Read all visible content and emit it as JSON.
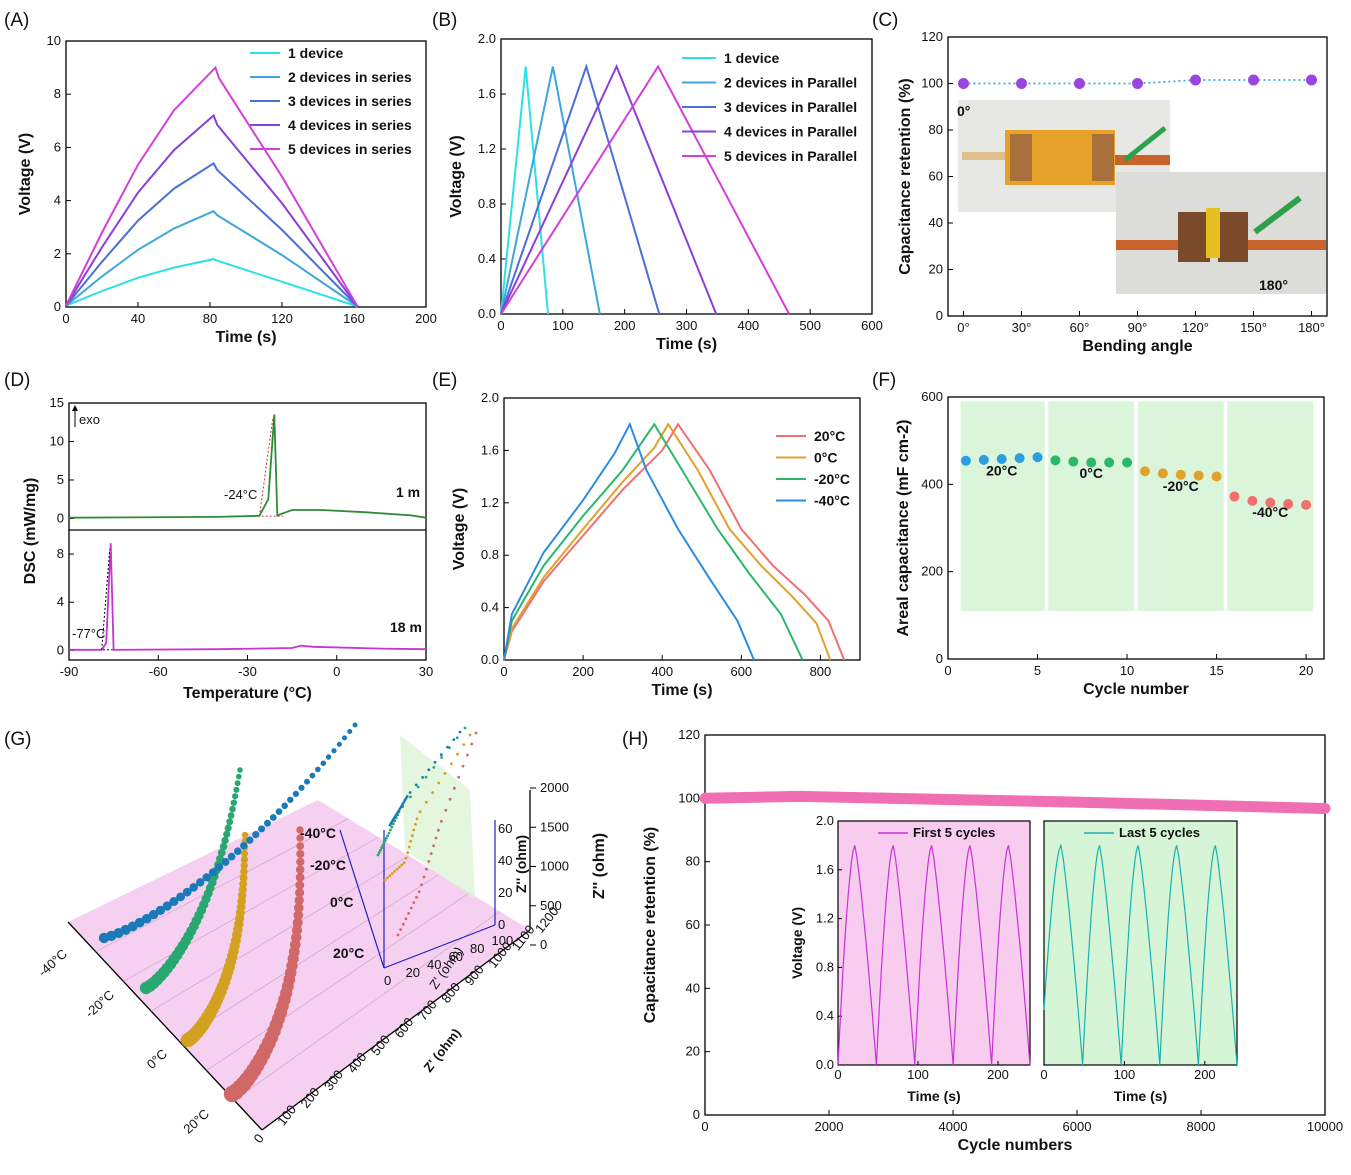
{
  "panel_labels": [
    "(A)",
    "(B)",
    "(C)",
    "(D)",
    "(E)",
    "(F)",
    "(G)",
    "(H)"
  ],
  "chart_data": [
    {
      "id": "A",
      "type": "line",
      "xlabel": "Time (s)",
      "ylabel": "Voltage (V)",
      "xlim": [
        0,
        200
      ],
      "ylim": [
        0,
        10
      ],
      "xticks": [
        0,
        40,
        80,
        120,
        160,
        200
      ],
      "yticks": [
        0,
        2,
        4,
        6,
        8,
        10
      ],
      "legend_position": "top-right",
      "series": [
        {
          "name": "1 device",
          "color": "#2de0e6",
          "points": [
            [
              0,
              0.05
            ],
            [
              20,
              0.6
            ],
            [
              40,
              1.1
            ],
            [
              60,
              1.48
            ],
            [
              82,
              1.8
            ],
            [
              84,
              1.74
            ],
            [
              120,
              0.95
            ],
            [
              162,
              0.02
            ]
          ]
        },
        {
          "name": "2 devices in series",
          "color": "#3ea6dc",
          "points": [
            [
              0,
              0.05
            ],
            [
              20,
              1.15
            ],
            [
              40,
              2.15
            ],
            [
              60,
              2.95
            ],
            [
              82,
              3.6
            ],
            [
              84,
              3.45
            ],
            [
              120,
              1.95
            ],
            [
              162,
              0.02
            ]
          ]
        },
        {
          "name": "3 devices in series",
          "color": "#4a6fd8",
          "points": [
            [
              0,
              0.05
            ],
            [
              20,
              1.7
            ],
            [
              40,
              3.25
            ],
            [
              60,
              4.45
            ],
            [
              82,
              5.4
            ],
            [
              84,
              5.15
            ],
            [
              120,
              2.9
            ],
            [
              162,
              0.02
            ]
          ]
        },
        {
          "name": "4 devices in series",
          "color": "#8a3fd8",
          "points": [
            [
              0,
              0.05
            ],
            [
              20,
              2.25
            ],
            [
              40,
              4.3
            ],
            [
              60,
              5.9
            ],
            [
              82,
              7.2
            ],
            [
              84,
              6.85
            ],
            [
              120,
              3.9
            ],
            [
              162,
              0.02
            ]
          ]
        },
        {
          "name": "5 devices in series",
          "color": "#d43fd8",
          "points": [
            [
              0,
              0.05
            ],
            [
              20,
              2.8
            ],
            [
              40,
              5.35
            ],
            [
              60,
              7.4
            ],
            [
              83,
              9.0
            ],
            [
              85,
              8.6
            ],
            [
              120,
              4.9
            ],
            [
              162,
              0.02
            ]
          ]
        }
      ]
    },
    {
      "id": "B",
      "type": "line",
      "xlabel": "Time (s)",
      "ylabel": "Voltage (V)",
      "xlim": [
        0,
        600
      ],
      "ylim": [
        0,
        2.0
      ],
      "xticks": [
        0,
        100,
        200,
        300,
        400,
        500,
        600
      ],
      "yticks": [
        0.0,
        0.4,
        0.8,
        1.2,
        1.6,
        2.0
      ],
      "legend_position": "top-right",
      "series": [
        {
          "name": "1 device",
          "color": "#2de0e6",
          "points": [
            [
              0,
              0
            ],
            [
              40,
              1.8
            ],
            [
              76,
              0
            ]
          ]
        },
        {
          "name": "2 devices in Parallel",
          "color": "#3ea6dc",
          "points": [
            [
              0,
              0
            ],
            [
              84,
              1.8
            ],
            [
              160,
              0
            ]
          ]
        },
        {
          "name": "3 devices in Parallel",
          "color": "#4a6fd8",
          "points": [
            [
              0,
              0
            ],
            [
              138,
              1.8
            ],
            [
              256,
              0
            ]
          ]
        },
        {
          "name": "4 devices in Parallel",
          "color": "#8a3fd8",
          "points": [
            [
              0,
              0
            ],
            [
              187,
              1.8
            ],
            [
              348,
              0
            ]
          ]
        },
        {
          "name": "5 devices in Parallel",
          "color": "#d43fd8",
          "points": [
            [
              0,
              0
            ],
            [
              254,
              1.8
            ],
            [
              466,
              0
            ]
          ]
        }
      ]
    },
    {
      "id": "C",
      "type": "scatter",
      "xlabel": "Bending angle",
      "ylabel": "Capacitance retention (%)",
      "xlim": [
        -8,
        188
      ],
      "ylim": [
        0,
        120
      ],
      "xticks": [
        0,
        30,
        60,
        90,
        120,
        150,
        180
      ],
      "xticklabels": [
        "0°",
        "30°",
        "60°",
        "90°",
        "120°",
        "150°",
        "180°"
      ],
      "yticks": [
        0,
        20,
        40,
        60,
        80,
        100,
        120
      ],
      "series": [
        {
          "color": "#9a45e0",
          "x": [
            0,
            30,
            60,
            90,
            120,
            150,
            180
          ],
          "y": [
            100,
            100,
            100,
            100,
            101.5,
            101.5,
            101.5
          ]
        }
      ],
      "photo_labels": [
        "0°",
        "180°"
      ]
    },
    {
      "id": "D",
      "type": "line",
      "xlabel": "Temperature (°C)",
      "ylabel": "DSC (mW/mg)",
      "xlim": [
        -90,
        30
      ],
      "xticks": [
        -90,
        -60,
        -30,
        0,
        30
      ],
      "top": {
        "ylim": [
          -1.5,
          15
        ],
        "yticks": [
          0,
          5,
          10,
          15
        ],
        "label": "1 m",
        "annotation": "-24°C",
        "exo": "exo",
        "color": "#2e8b3a",
        "points": [
          [
            -90,
            0.1
          ],
          [
            -40,
            0.2
          ],
          [
            -26,
            0.35
          ],
          [
            -23,
            2.5
          ],
          [
            -21,
            13.5
          ],
          [
            -20,
            0.4
          ],
          [
            -15,
            1.1
          ],
          [
            -5,
            1.1
          ],
          [
            10,
            0.8
          ],
          [
            25,
            0.4
          ],
          [
            30,
            0.1
          ]
        ]
      },
      "bottom": {
        "ylim": [
          -0.8,
          10
        ],
        "yticks": [
          0,
          4,
          8
        ],
        "label": "18 m",
        "annotation": "-77°C",
        "color": "#c634d4",
        "points": [
          [
            -90,
            0.05
          ],
          [
            -79,
            0.05
          ],
          [
            -77.5,
            0.6
          ],
          [
            -76,
            8.9
          ],
          [
            -75,
            0.05
          ],
          [
            -40,
            0.1
          ],
          [
            -15,
            0.2
          ],
          [
            -12,
            0.4
          ],
          [
            -8,
            0.3
          ],
          [
            15,
            0.15
          ],
          [
            30,
            0.1
          ]
        ]
      }
    },
    {
      "id": "E",
      "type": "line",
      "xlabel": "Time (s)",
      "ylabel": "Voltage (V)",
      "xlim": [
        0,
        900
      ],
      "ylim": [
        0,
        2.0
      ],
      "xticks": [
        0,
        200,
        400,
        600,
        800
      ],
      "yticks": [
        0.0,
        0.4,
        0.8,
        1.2,
        1.6,
        2.0
      ],
      "legend_position": "top-right",
      "series": [
        {
          "name": "20°C",
          "color": "#f07070",
          "points": [
            [
              0,
              0
            ],
            [
              20,
              0.22
            ],
            [
              100,
              0.6
            ],
            [
              200,
              0.95
            ],
            [
              300,
              1.3
            ],
            [
              400,
              1.6
            ],
            [
              440,
              1.8
            ],
            [
              520,
              1.45
            ],
            [
              600,
              1.0
            ],
            [
              680,
              0.72
            ],
            [
              760,
              0.5
            ],
            [
              820,
              0.3
            ],
            [
              860,
              0
            ]
          ]
        },
        {
          "name": "0°C",
          "color": "#e0a22a",
          "points": [
            [
              0,
              0
            ],
            [
              20,
              0.24
            ],
            [
              100,
              0.63
            ],
            [
              200,
              1.0
            ],
            [
              300,
              1.36
            ],
            [
              380,
              1.62
            ],
            [
              415,
              1.8
            ],
            [
              490,
              1.45
            ],
            [
              570,
              1.0
            ],
            [
              650,
              0.72
            ],
            [
              730,
              0.48
            ],
            [
              790,
              0.28
            ],
            [
              825,
              0
            ]
          ]
        },
        {
          "name": "-20°C",
          "color": "#2cb86a",
          "points": [
            [
              0,
              0
            ],
            [
              20,
              0.3
            ],
            [
              100,
              0.72
            ],
            [
              200,
              1.1
            ],
            [
              300,
              1.45
            ],
            [
              380,
              1.8
            ],
            [
              460,
              1.4
            ],
            [
              540,
              1.0
            ],
            [
              620,
              0.66
            ],
            [
              700,
              0.35
            ],
            [
              755,
              0
            ]
          ]
        },
        {
          "name": "-40°C",
          "color": "#2a8de0",
          "points": [
            [
              0,
              0
            ],
            [
              20,
              0.35
            ],
            [
              100,
              0.82
            ],
            [
              200,
              1.22
            ],
            [
              280,
              1.58
            ],
            [
              318,
              1.8
            ],
            [
              360,
              1.45
            ],
            [
              440,
              1.0
            ],
            [
              520,
              0.62
            ],
            [
              590,
              0.3
            ],
            [
              632,
              0
            ]
          ]
        }
      ]
    },
    {
      "id": "F",
      "type": "scatter",
      "xlabel": "Cycle number",
      "ylabel": "Areal capacitance (mF cm-2)",
      "xlim": [
        0,
        21
      ],
      "ylim": [
        0,
        600
      ],
      "xticks": [
        0,
        5,
        10,
        15,
        20
      ],
      "yticks": [
        0,
        200,
        400,
        600
      ],
      "series": [
        {
          "name": "20°C",
          "color": "#2a9ee0",
          "x": [
            1,
            2,
            3,
            4,
            5
          ],
          "y": [
            454,
            456,
            458,
            460,
            462
          ]
        },
        {
          "name": "0°C",
          "color": "#2cb86a",
          "x": [
            6,
            7,
            8,
            9,
            10
          ],
          "y": [
            455,
            452,
            450,
            450,
            450
          ]
        },
        {
          "name": "-20°C",
          "color": "#e0a22a",
          "x": [
            11,
            12,
            13,
            14,
            15
          ],
          "y": [
            430,
            425,
            422,
            420,
            418
          ]
        },
        {
          "name": "-40°C",
          "color": "#f07070",
          "x": [
            16,
            17,
            18,
            19,
            20
          ],
          "y": [
            372,
            362,
            358,
            355,
            353
          ]
        }
      ],
      "segment_labels": [
        "20°C",
        "0°C",
        "-20°C",
        "-40°C"
      ]
    },
    {
      "id": "G",
      "type": "scatter",
      "xlabel": "Z' (ohm)",
      "ylabel": "Z'' (ohm)",
      "xticks": [
        0,
        100,
        200,
        300,
        400,
        500,
        600,
        700,
        800,
        900,
        1000,
        1100,
        1200
      ],
      "zticks": [
        0,
        500,
        1000,
        1500,
        2000
      ],
      "categories": [
        "20°C",
        "0°C",
        "-20°C",
        "-40°C"
      ],
      "colors": [
        "#d06868",
        "#d4a020",
        "#28a870",
        "#1a7ab8"
      ],
      "inset": {
        "xticks": [
          0,
          20,
          40,
          60,
          80,
          100
        ],
        "yticks": [
          0,
          20,
          40,
          60
        ],
        "xlabel": "Z' (ohm)",
        "ylabel": "Z'' (ohm)",
        "labels": [
          "-40°C",
          "-20°C",
          "0°C",
          "20°C"
        ]
      }
    },
    {
      "id": "H",
      "type": "scatter",
      "xlabel": "Cycle numbers",
      "ylabel": "Capacitance retention (%)",
      "xlim": [
        0,
        10000
      ],
      "ylim": [
        0,
        120
      ],
      "xticks": [
        0,
        2000,
        4000,
        6000,
        8000,
        10000
      ],
      "yticks": [
        0,
        20,
        40,
        60,
        80,
        100,
        120
      ],
      "series": [
        {
          "color": "#f06fb4",
          "points": [
            [
              0,
              100
            ],
            [
              1500,
              100.6
            ],
            [
              4000,
              99.6
            ],
            [
              6000,
              98.8
            ],
            [
              8000,
              97.8
            ],
            [
              10000,
              96.8
            ]
          ]
        }
      ],
      "insets": [
        {
          "name": "First 5 cycles",
          "color": "#c634d4",
          "xlim": [
            0,
            240
          ],
          "ylim": [
            0,
            2.0
          ],
          "xticks": [
            0,
            100,
            200
          ],
          "yticks": [
            0.0,
            0.4,
            0.8,
            1.2,
            1.6,
            2.0
          ],
          "xlabel": "Time (s)",
          "ylabel": "Voltage (V)",
          "cycles": [
            [
              0,
              21,
              48
            ],
            [
              48,
              69,
              96
            ],
            [
              96,
              117,
              144
            ],
            [
              144,
              165,
              192
            ],
            [
              192,
              213,
              240
            ]
          ]
        },
        {
          "name": "Last 5 cycles",
          "color": "#19b2b2",
          "xlim": [
            0,
            240
          ],
          "ylim": [
            0,
            2.0
          ],
          "xticks": [
            0,
            100,
            200
          ],
          "xlabel": "Time (s)",
          "cycles": [
            [
              0,
              21,
              48
            ],
            [
              48,
              69,
              96
            ],
            [
              96,
              117,
              144
            ],
            [
              144,
              165,
              192
            ],
            [
              192,
              213,
              240
            ]
          ]
        }
      ]
    }
  ]
}
